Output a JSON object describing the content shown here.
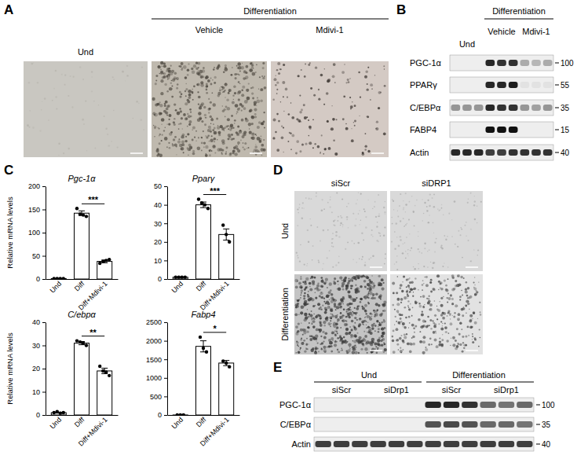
{
  "panels": {
    "A": {
      "label": "A",
      "columns": [
        "Und",
        "Vehicle",
        "Mdivi-1"
      ],
      "group_label": "Differentiation"
    },
    "B": {
      "label": "B",
      "group_labels": [
        "Und",
        "Differentiation"
      ],
      "sub_labels": [
        "Vehicle",
        "Mdivi-1"
      ],
      "rows": [
        {
          "name": "PGC-1α",
          "mw": 100,
          "intensity": [
            0,
            0,
            0,
            0.9,
            0.85,
            0.85,
            0.3,
            0.25,
            0.3
          ]
        },
        {
          "name": "PPARγ",
          "mw": 55,
          "intensity": [
            0,
            0,
            0,
            0.9,
            0.9,
            0.95,
            0.05,
            0.05,
            0.05
          ]
        },
        {
          "name": "C/EBPα",
          "mw": 35,
          "intensity": [
            0.4,
            0.4,
            0.4,
            0.9,
            0.85,
            0.85,
            0.4,
            0.35,
            0.4
          ]
        },
        {
          "name": "FABP4",
          "mw": 15,
          "intensity": [
            0,
            0,
            0,
            1,
            1,
            1,
            0,
            0,
            0
          ]
        },
        {
          "name": "Actin",
          "mw": 40,
          "intensity": [
            0.9,
            0.9,
            0.9,
            0.8,
            0.8,
            0.85,
            0.85,
            0.85,
            0.85
          ]
        }
      ]
    },
    "C": {
      "label": "C"
    },
    "D": {
      "label": "D",
      "columns": [
        "siScr",
        "siDRP1"
      ],
      "rows": [
        "Und",
        "Differentiation"
      ]
    },
    "E": {
      "label": "E",
      "group_labels": [
        "Und",
        "Differentiation"
      ],
      "sub_labels": [
        "siScr",
        "siDrp1"
      ],
      "rows": [
        {
          "name": "PGC-1α",
          "mw": 100,
          "intensity": [
            0,
            0,
            0,
            0,
            0,
            0,
            0.9,
            0.9,
            0.85,
            0.6,
            0.55,
            0.6
          ]
        },
        {
          "name": "C/EBPα",
          "mw": 35,
          "intensity": [
            0,
            0,
            0,
            0,
            0,
            0,
            0.7,
            0.75,
            0.7,
            0.6,
            0.6,
            0.55
          ]
        },
        {
          "name": "Actin",
          "mw": 40,
          "intensity": [
            0.8,
            0.8,
            0.8,
            0.8,
            0.8,
            0.8,
            0.8,
            0.8,
            0.8,
            0.8,
            0.8,
            0.8
          ]
        }
      ]
    }
  },
  "chart_data": [
    {
      "type": "bar",
      "title": "Pgc-1α",
      "ylabel": "Relative mRNA levels",
      "categories": [
        "Und",
        "Diff",
        "Diff+Mdivi-1"
      ],
      "values": [
        1,
        142,
        38
      ],
      "errors": [
        0.3,
        5,
        3
      ],
      "points": [
        [
          1,
          1,
          1,
          1
        ],
        [
          152,
          140,
          138,
          135
        ],
        [
          34,
          38,
          40,
          42
        ]
      ],
      "significance": {
        "label": "***",
        "between": [
          1,
          2
        ]
      },
      "color": "#ffffff",
      "ylim": [
        0,
        200
      ],
      "yticks": [
        0,
        50,
        100,
        150,
        200
      ]
    },
    {
      "type": "bar",
      "title": "Pparγ",
      "categories": [
        "Und",
        "Diff",
        "Diff+Mdivi-1"
      ],
      "values": [
        1,
        40,
        24
      ],
      "errors": [
        0.1,
        1.5,
        3
      ],
      "points": [
        [
          1,
          1,
          1,
          1
        ],
        [
          43,
          41,
          40,
          38
        ],
        [
          29,
          24,
          20
        ]
      ],
      "significance": {
        "label": "***",
        "between": [
          1,
          2
        ]
      },
      "color": "#ffffff",
      "ylim": [
        0,
        50
      ],
      "yticks": [
        0,
        10,
        20,
        30,
        40,
        50
      ]
    },
    {
      "type": "bar",
      "title": "C/ebpα",
      "ylabel": "Relative mRNA levels",
      "categories": [
        "Und",
        "Diff",
        "Diff+Mdivi-1"
      ],
      "values": [
        1,
        31,
        19
      ],
      "errors": [
        0.2,
        0.7,
        1.2
      ],
      "points": [
        [
          1,
          1.5,
          0.8,
          1
        ],
        [
          32,
          31.5,
          31,
          30
        ],
        [
          21,
          19,
          18.5,
          17
        ]
      ],
      "significance": {
        "label": "**",
        "between": [
          1,
          2
        ]
      },
      "color": "#ffffff",
      "ylim": [
        0,
        40
      ],
      "yticks": [
        0,
        10,
        20,
        30,
        40
      ]
    },
    {
      "type": "bar",
      "title": "Fabp4",
      "categories": [
        "Und",
        "Diff",
        "Diff+Mdivi-1"
      ],
      "values": [
        1,
        1850,
        1400
      ],
      "errors": [
        0.3,
        150,
        70
      ],
      "points": [
        [
          1,
          1,
          1
        ],
        [
          2100,
          1800,
          1700
        ],
        [
          1450,
          1400,
          1300
        ]
      ],
      "significance": {
        "label": "*",
        "between": [
          1,
          2
        ]
      },
      "color": "#ffffff",
      "ylim": [
        0,
        2500
      ],
      "yticks": [
        0,
        500,
        1000,
        1500,
        2000,
        2500
      ]
    }
  ]
}
